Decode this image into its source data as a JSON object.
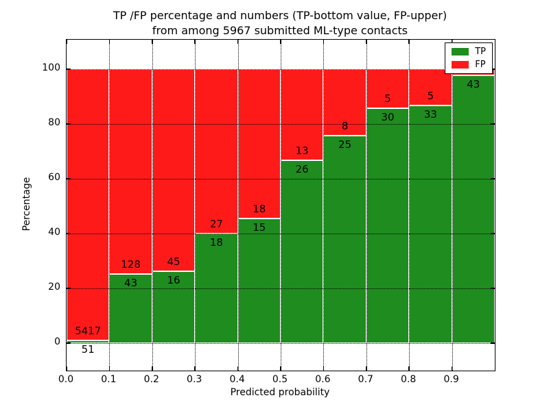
{
  "figure": {
    "title_line1": "TP /FP percentage and numbers (TP-bottom value, FP-upper)",
    "title_line2": "from among 5967 submitted ML-type contacts",
    "xlabel": "Predicted probability",
    "ylabel": "Percentage"
  },
  "legend": {
    "position": "upper right",
    "items": [
      {
        "label": "TP",
        "color": "#1e8c1e"
      },
      {
        "label": "FP",
        "color": "#ff1a1a"
      }
    ]
  },
  "chart_data": {
    "type": "bar",
    "stacked": true,
    "normalized_to_percent": true,
    "title": "TP /FP percentage and numbers (TP-bottom value, FP-upper) from among 5967 submitted ML-type contacts",
    "xlabel": "Predicted probability",
    "ylabel": "Percentage",
    "x_ticks": [
      "0.0",
      "0.1",
      "0.2",
      "0.3",
      "0.4",
      "0.5",
      "0.6",
      "0.7",
      "0.8",
      "0.9"
    ],
    "y_ticks": [
      "0",
      "20",
      "40",
      "60",
      "80",
      "100"
    ],
    "xlim": [
      0.0,
      1.0
    ],
    "ylim": [
      -10,
      110.75
    ],
    "grid": true,
    "bar_width": 0.1,
    "total_submitted": 5967,
    "series": [
      {
        "name": "TP",
        "color": "#1e8c1e"
      },
      {
        "name": "FP",
        "color": "#ff1a1a"
      }
    ],
    "bins": [
      {
        "x_start": 0.0,
        "x_end": 0.1,
        "tp": 51,
        "fp": 5417,
        "fp_label_visible": true
      },
      {
        "x_start": 0.1,
        "x_end": 0.2,
        "tp": 43,
        "fp": 128,
        "fp_label_visible": true
      },
      {
        "x_start": 0.2,
        "x_end": 0.3,
        "tp": 16,
        "fp": 45,
        "fp_label_visible": true
      },
      {
        "x_start": 0.3,
        "x_end": 0.4,
        "tp": 18,
        "fp": 27,
        "fp_label_visible": true
      },
      {
        "x_start": 0.4,
        "x_end": 0.5,
        "tp": 15,
        "fp": 18,
        "fp_label_visible": true
      },
      {
        "x_start": 0.5,
        "x_end": 0.6,
        "tp": 26,
        "fp": 13,
        "fp_label_visible": true
      },
      {
        "x_start": 0.6,
        "x_end": 0.7,
        "tp": 25,
        "fp": 8,
        "fp_label_visible": true
      },
      {
        "x_start": 0.7,
        "x_end": 0.8,
        "tp": 30,
        "fp": 5,
        "fp_label_visible": true
      },
      {
        "x_start": 0.8,
        "x_end": 0.9,
        "tp": 33,
        "fp": 5,
        "fp_label_visible": true
      },
      {
        "x_start": 0.9,
        "x_end": 1.0,
        "tp": 43,
        "fp": 1,
        "fp_label_visible": false
      }
    ]
  }
}
